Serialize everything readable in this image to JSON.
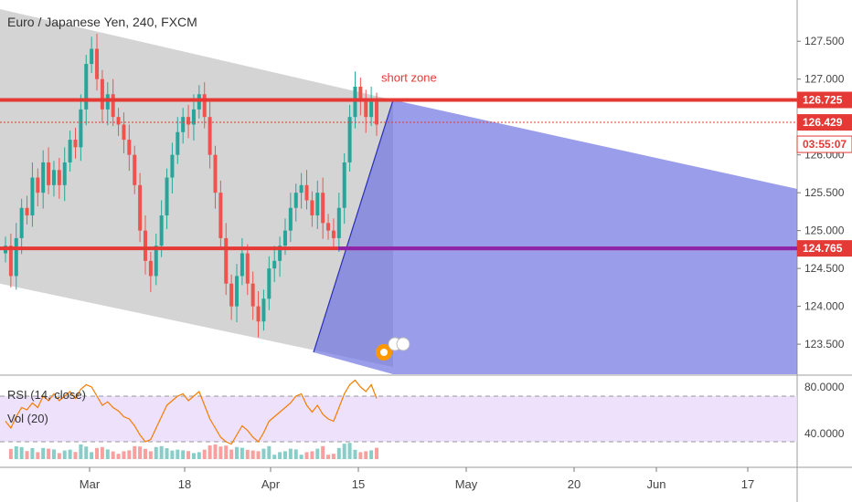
{
  "title": "Euro / Japanese Yen, 240, FXCM",
  "colors": {
    "up": "#26a69a",
    "down": "#ef5350",
    "level": "#e53935",
    "support": "#8e24aa",
    "channel": "#b0b0b0",
    "zone": "#6f73e0",
    "rsi": "#f57c00",
    "rsi_band": "#e9d9fb"
  },
  "chart_data": {
    "type": "candlestick",
    "symbol": "EURJPY",
    "timeframe": "240",
    "y_ticks": [
      127.5,
      127.0,
      126.5,
      126.0,
      125.5,
      125.0,
      124.5,
      124.0,
      123.5
    ],
    "y_tick_labels": [
      "127.500",
      "127.000",
      "",
      "126.000",
      "125.500",
      "125.000",
      "124.500",
      "124.000",
      "123.500"
    ],
    "ylim": [
      123.2,
      127.9
    ],
    "x_tick_labels": [
      "Mar",
      "18",
      "Apr",
      "15",
      "May",
      "20",
      "Jun",
      "17"
    ],
    "price_labels": {
      "resistance": "126.725",
      "last": "126.429",
      "countdown": "03:55:07",
      "support": "124.765"
    },
    "annotation": "short zone",
    "levels": {
      "resistance": 126.725,
      "last": 126.429,
      "support": 124.765
    },
    "close_path": [
      124.8,
      124.4,
      124.9,
      125.3,
      125.2,
      125.7,
      125.5,
      125.9,
      125.6,
      125.8,
      125.6,
      125.9,
      126.2,
      126.1,
      126.6,
      127.2,
      127.4,
      127.0,
      126.6,
      126.8,
      126.5,
      126.4,
      126.2,
      126.0,
      125.6,
      125.0,
      124.6,
      124.4,
      124.8,
      125.2,
      125.7,
      126.0,
      126.3,
      126.5,
      126.4,
      126.6,
      126.8,
      126.5,
      126.0,
      125.5,
      124.9,
      124.3,
      124.0,
      124.4,
      124.7,
      124.3,
      124.0,
      123.8,
      124.1,
      124.5,
      124.6,
      124.8,
      125.0,
      125.3,
      125.5,
      125.6,
      125.4,
      125.2,
      125.5,
      125.1,
      125.0,
      124.9,
      125.3,
      125.9,
      126.5,
      126.9,
      126.7,
      126.5,
      126.7,
      126.4
    ],
    "rsi": {
      "label": "RSI (14, close)",
      "y_tick_labels": [
        "80.0000",
        "40.0000"
      ],
      "values": [
        48,
        42,
        52,
        60,
        58,
        64,
        60,
        70,
        66,
        72,
        66,
        70,
        74,
        68,
        76,
        80,
        78,
        70,
        62,
        65,
        60,
        57,
        52,
        50,
        44,
        36,
        30,
        32,
        42,
        52,
        62,
        66,
        70,
        72,
        66,
        70,
        74,
        62,
        50,
        42,
        34,
        30,
        28,
        36,
        44,
        40,
        34,
        30,
        38,
        48,
        52,
        56,
        60,
        64,
        70,
        72,
        62,
        56,
        62,
        54,
        50,
        48,
        60,
        72,
        80,
        84,
        78,
        74,
        80,
        68
      ]
    },
    "volume": {
      "label": "Vol (20)"
    }
  }
}
